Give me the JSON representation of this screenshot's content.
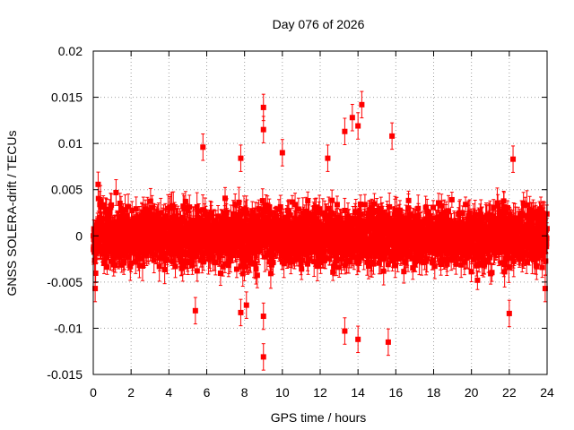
{
  "chart_data": {
    "type": "scatter",
    "title": "Day 076 of 2026",
    "xlabel": "GPS time / hours",
    "ylabel": "GNSS SOLERA-drift / TECUs",
    "xlim": [
      0,
      24
    ],
    "ylim": [
      -0.015,
      0.02
    ],
    "xticks": [
      0,
      2,
      4,
      6,
      8,
      10,
      12,
      14,
      16,
      18,
      20,
      22,
      24
    ],
    "yticks": [
      -0.015,
      -0.01,
      -0.005,
      0,
      0.005,
      0.01,
      0.015,
      0.02
    ],
    "xtick_labels": [
      "0",
      "2",
      "4",
      "6",
      "8",
      "10",
      "12",
      "14",
      "16",
      "18",
      "20",
      "22",
      "24"
    ],
    "ytick_labels": [
      "-0.015",
      "-0.01",
      "-0.005",
      "0",
      "0.005",
      "0.01",
      "0.015",
      "0.02"
    ],
    "grid": true,
    "series": [
      {
        "name": "SOLERA-drift",
        "color": "#ff0000",
        "marker": "square",
        "error_bars": true,
        "sample_interval_hours": 0.0083,
        "bulk_std": 0.0025,
        "typical_error": 0.0011,
        "notable_points": [
          {
            "x": 9.0,
            "y": 0.0139
          },
          {
            "x": 9.0,
            "y": 0.0115
          },
          {
            "x": 14.2,
            "y": 0.0142
          },
          {
            "x": 13.7,
            "y": 0.0128
          },
          {
            "x": 13.3,
            "y": 0.0113
          },
          {
            "x": 14.0,
            "y": 0.0119
          },
          {
            "x": 15.8,
            "y": 0.0108
          },
          {
            "x": 5.8,
            "y": 0.0096
          },
          {
            "x": 10.0,
            "y": 0.009
          },
          {
            "x": 12.4,
            "y": 0.0084
          },
          {
            "x": 7.8,
            "y": 0.0084
          },
          {
            "x": 22.2,
            "y": 0.0083
          },
          {
            "x": 9.0,
            "y": -0.0131
          },
          {
            "x": 9.0,
            "y": -0.0087
          },
          {
            "x": 13.3,
            "y": -0.0103
          },
          {
            "x": 14.0,
            "y": -0.0112
          },
          {
            "x": 15.6,
            "y": -0.0115
          },
          {
            "x": 5.4,
            "y": -0.0081
          },
          {
            "x": 7.8,
            "y": -0.0083
          },
          {
            "x": 22.0,
            "y": -0.0084
          },
          {
            "x": 8.1,
            "y": -0.0075
          },
          {
            "x": 0.1,
            "y": -0.0057
          },
          {
            "x": 23.9,
            "y": -0.0057
          }
        ]
      }
    ]
  }
}
